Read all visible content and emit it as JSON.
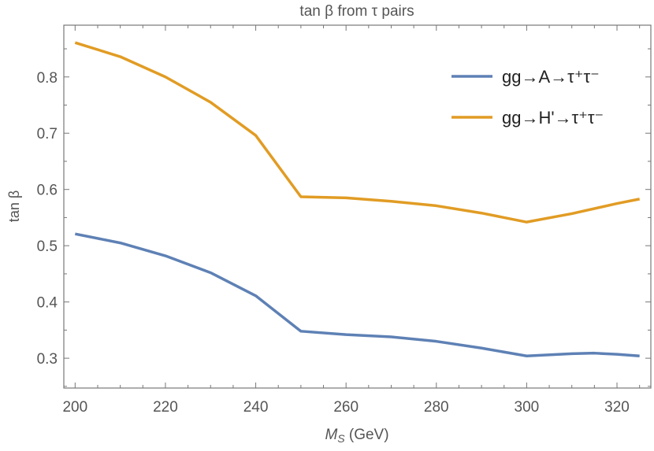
{
  "chart_data": {
    "type": "line",
    "title": "tan β from τ pairs",
    "xlabel_main": "M",
    "xlabel_sub": "S",
    "xlabel_unit": " (GeV)",
    "ylabel": "tan β",
    "xlim": [
      197.5,
      327.5
    ],
    "ylim": [
      0.247,
      0.892
    ],
    "xticks": [
      200,
      220,
      240,
      260,
      280,
      300,
      320
    ],
    "yticks": [
      0.3,
      0.4,
      0.5,
      0.6,
      0.7,
      0.8
    ],
    "grid": false,
    "legend_placement": "top-right",
    "series": [
      {
        "name": "gg→A→τ⁺τ⁻",
        "color": "#5E81B5",
        "x": [
          200,
          210,
          220,
          230,
          240,
          250,
          260,
          270,
          280,
          290,
          300,
          310,
          315,
          320,
          325
        ],
        "y": [
          0.521,
          0.505,
          0.482,
          0.452,
          0.411,
          0.348,
          0.342,
          0.338,
          0.33,
          0.318,
          0.304,
          0.308,
          0.309,
          0.307,
          0.304
        ]
      },
      {
        "name": "gg→H'→τ⁺τ⁻",
        "color": "#E19C24",
        "x": [
          200,
          210,
          220,
          230,
          240,
          250,
          260,
          270,
          280,
          290,
          300,
          310,
          320,
          325
        ],
        "y": [
          0.861,
          0.836,
          0.8,
          0.755,
          0.696,
          0.587,
          0.585,
          0.579,
          0.571,
          0.558,
          0.542,
          0.557,
          0.575,
          0.583
        ]
      }
    ]
  }
}
